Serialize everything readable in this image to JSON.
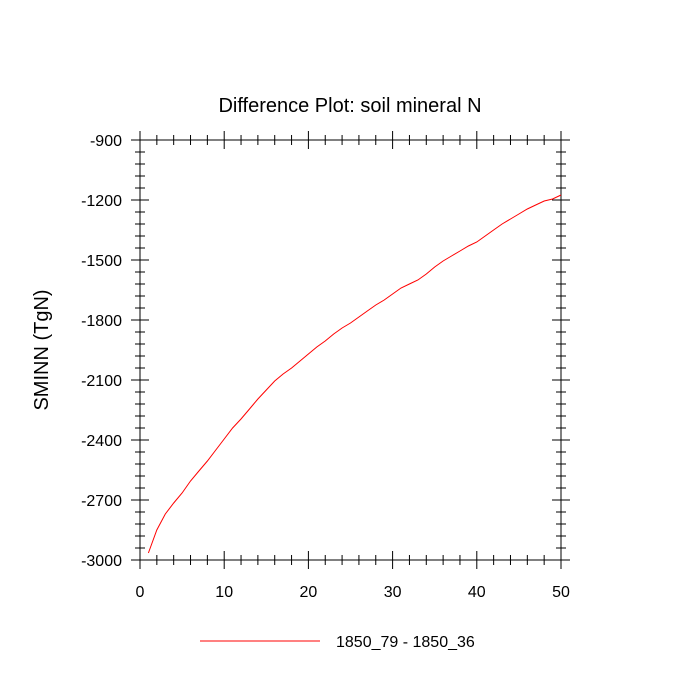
{
  "chart_data": {
    "type": "line",
    "title": "Difference Plot: soil mineral N",
    "xlabel": "",
    "ylabel": "SMINN  (TgN)",
    "xlim": [
      0,
      50
    ],
    "ylim": [
      -3000,
      -900
    ],
    "xticks": [
      0,
      10,
      20,
      30,
      40,
      50
    ],
    "yticks": [
      -3000,
      -2700,
      -2400,
      -2100,
      -1800,
      -1500,
      -1200,
      -900
    ],
    "xtick_labels": [
      "0",
      "10",
      "20",
      "30",
      "40",
      "50"
    ],
    "ytick_labels": [
      "-3000",
      "-2700",
      "-2400",
      "-2100",
      "-1800",
      "-1500",
      "-1200",
      "-900"
    ],
    "grid": false,
    "legend_placement": "bottom-center",
    "series": [
      {
        "name": "1850_79 - 1850_36",
        "color": "#ff0000",
        "x": [
          1,
          2,
          3,
          4,
          5,
          6,
          7,
          8,
          9,
          10,
          11,
          12,
          13,
          14,
          15,
          16,
          17,
          18,
          19,
          20,
          21,
          22,
          23,
          24,
          25,
          26,
          27,
          28,
          29,
          30,
          31,
          32,
          33,
          34,
          35,
          36,
          37,
          38,
          39,
          40,
          41,
          42,
          43,
          44,
          45,
          46,
          47,
          48,
          49,
          50
        ],
        "values": [
          -2965,
          -2850,
          -2770,
          -2715,
          -2665,
          -2605,
          -2555,
          -2505,
          -2450,
          -2395,
          -2340,
          -2295,
          -2245,
          -2195,
          -2150,
          -2105,
          -2070,
          -2040,
          -2005,
          -1970,
          -1935,
          -1905,
          -1870,
          -1840,
          -1815,
          -1785,
          -1755,
          -1725,
          -1700,
          -1670,
          -1640,
          -1620,
          -1600,
          -1570,
          -1535,
          -1505,
          -1480,
          -1455,
          -1430,
          -1410,
          -1380,
          -1350,
          -1320,
          -1295,
          -1270,
          -1245,
          -1225,
          -1205,
          -1195,
          -1175
        ]
      }
    ]
  }
}
